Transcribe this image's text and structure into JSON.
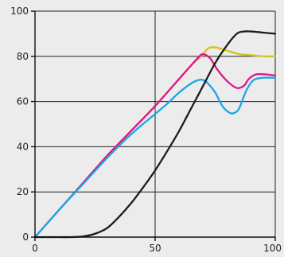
{
  "chart_data": {
    "type": "line",
    "title": "",
    "xlabel": "",
    "ylabel": "",
    "xlim": [
      0,
      100
    ],
    "ylim": [
      0,
      100
    ],
    "xticks": [
      0,
      50,
      100
    ],
    "yticks": [
      0,
      20,
      40,
      60,
      80,
      100
    ],
    "grid": true,
    "legend": "none",
    "series": [
      {
        "color": "#d7c21f",
        "x": [
          0,
          10,
          20,
          30,
          40,
          50,
          55,
          60,
          65,
          70,
          72,
          75,
          80,
          85,
          90,
          95,
          100
        ],
        "values": [
          0,
          12,
          24,
          36,
          47,
          58,
          64,
          70,
          76,
          81,
          83.5,
          84,
          82.5,
          81,
          80.5,
          80,
          80
        ]
      },
      {
        "color": "#e0148c",
        "x": [
          0,
          10,
          20,
          30,
          40,
          50,
          55,
          60,
          65,
          68,
          70,
          73,
          76,
          80,
          84,
          87,
          89,
          92,
          96,
          100
        ],
        "values": [
          0,
          12,
          24,
          36,
          47,
          58,
          64,
          70,
          76,
          79.5,
          81,
          79,
          74,
          69,
          66,
          67,
          70,
          72,
          72,
          71.5
        ]
      },
      {
        "color": "#1aa7e6",
        "x": [
          0,
          10,
          20,
          30,
          40,
          50,
          55,
          60,
          65,
          68,
          70,
          72,
          75,
          78,
          81,
          83,
          85,
          88,
          91,
          95,
          100
        ],
        "values": [
          0,
          12,
          23.5,
          35,
          45.5,
          54.5,
          59,
          64,
          68,
          69.5,
          69.5,
          68,
          64,
          58,
          55,
          55,
          57,
          65,
          69.5,
          70.5,
          70.5
        ]
      },
      {
        "color": "#1c1c1c",
        "x": [
          0,
          10,
          15,
          20,
          25,
          30,
          35,
          40,
          45,
          50,
          55,
          60,
          65,
          70,
          75,
          80,
          84,
          87,
          90,
          95,
          100
        ],
        "values": [
          0,
          0,
          0,
          0.3,
          1.5,
          4,
          9,
          15,
          22,
          29.5,
          38,
          47,
          57,
          67,
          77,
          85,
          90,
          91,
          91,
          90.5,
          90
        ]
      }
    ]
  }
}
